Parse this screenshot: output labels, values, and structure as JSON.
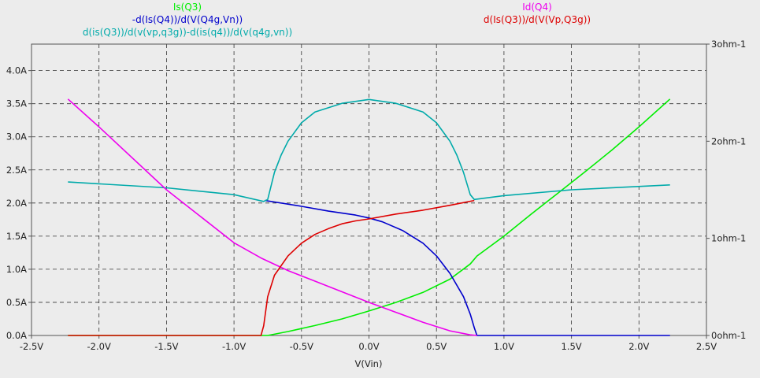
{
  "chart_data": {
    "type": "line",
    "title": "",
    "xlabel": "V(Vin)",
    "x_range": [
      -2.5,
      2.5
    ],
    "x_ticks": [
      -2.5,
      -2.0,
      -1.5,
      -1.0,
      -0.5,
      0.0,
      0.5,
      1.0,
      1.5,
      2.0,
      2.5
    ],
    "x_tick_labels": [
      "-2.5V",
      "-2.0V",
      "-1.5V",
      "-1.0V",
      "-0.5V",
      "0.0V",
      "0.5V",
      "1.0V",
      "1.5V",
      "2.0V",
      "2.5V"
    ],
    "y_left_range": [
      0,
      4.4
    ],
    "y_left_ticks": [
      0.0,
      0.5,
      1.0,
      1.5,
      2.0,
      2.5,
      3.0,
      3.5,
      4.0
    ],
    "y_left_tick_labels": [
      "0.0A",
      "0.5A",
      "1.0A",
      "1.5A",
      "2.0A",
      "2.5A",
      "3.0A",
      "3.5A",
      "4.0A"
    ],
    "y_right_range": [
      0,
      3
    ],
    "y_right_ticks": [
      0,
      1,
      2,
      3
    ],
    "y_right_tick_labels": [
      "0ohm-1",
      "1ohm-1",
      "2ohm-1",
      "3ohm-1"
    ],
    "grid": true,
    "series": [
      {
        "name": "Is(Q3)",
        "axis": "left",
        "color": "#00ee00",
        "x": [
          -2.23,
          -0.78,
          -0.75,
          -0.6,
          -0.4,
          -0.2,
          0.0,
          0.2,
          0.4,
          0.6,
          0.75,
          0.8,
          1.0,
          1.2,
          1.4,
          1.6,
          1.8,
          2.0,
          2.23
        ],
        "y": [
          0.0,
          0.0,
          0.0,
          0.06,
          0.15,
          0.25,
          0.37,
          0.5,
          0.65,
          0.85,
          1.08,
          1.2,
          1.5,
          1.83,
          2.15,
          2.47,
          2.8,
          3.15,
          3.57
        ]
      },
      {
        "name": "-d(Is(Q4))/d(V(Q4g,Vn))",
        "axis": "right",
        "color": "#0000cc",
        "x": [
          -0.77,
          -0.5,
          -0.3,
          -0.1,
          0.0,
          0.1,
          0.25,
          0.4,
          0.5,
          0.6,
          0.7,
          0.75,
          0.78,
          0.8,
          2.23
        ],
        "y": [
          1.39,
          1.33,
          1.28,
          1.24,
          1.21,
          1.17,
          1.08,
          0.95,
          0.82,
          0.64,
          0.4,
          0.22,
          0.08,
          0.0,
          0.0
        ]
      },
      {
        "name": "d(is(Q3))/d(v(vp,q3g))-d(is(q4))/d(v(q4g,vn))",
        "axis": "right",
        "color": "#00aaaa",
        "x": [
          -2.23,
          -1.5,
          -1.0,
          -0.78,
          -0.75,
          -0.7,
          -0.65,
          -0.6,
          -0.5,
          -0.4,
          -0.2,
          0.0,
          0.2,
          0.4,
          0.5,
          0.6,
          0.65,
          0.7,
          0.75,
          0.78,
          1.0,
          1.5,
          2.23
        ],
        "y": [
          1.58,
          1.52,
          1.45,
          1.38,
          1.4,
          1.68,
          1.86,
          2.0,
          2.19,
          2.3,
          2.39,
          2.43,
          2.39,
          2.3,
          2.19,
          2.0,
          1.86,
          1.68,
          1.45,
          1.4,
          1.44,
          1.5,
          1.55
        ]
      },
      {
        "name": "Id(Q4)",
        "axis": "left",
        "color": "#ee00ee",
        "x": [
          -2.23,
          -2.0,
          -1.5,
          -1.0,
          -0.8,
          -0.6,
          -0.4,
          -0.2,
          0.0,
          0.2,
          0.4,
          0.6,
          0.75,
          0.8
        ],
        "y": [
          3.57,
          3.15,
          2.2,
          1.4,
          1.17,
          0.98,
          0.82,
          0.66,
          0.5,
          0.35,
          0.2,
          0.07,
          0.01,
          0.0
        ]
      },
      {
        "name": "d(Is(Q3))/d(V(Vp,Q3g))",
        "axis": "right",
        "color": "#dd0000",
        "x": [
          -2.23,
          -0.8,
          -0.78,
          -0.75,
          -0.7,
          -0.6,
          -0.5,
          -0.4,
          -0.3,
          -0.2,
          -0.1,
          0.0,
          0.2,
          0.4,
          0.6,
          0.78
        ],
        "y": [
          0.0,
          0.0,
          0.1,
          0.4,
          0.62,
          0.82,
          0.95,
          1.04,
          1.1,
          1.15,
          1.18,
          1.2,
          1.25,
          1.29,
          1.34,
          1.39
        ]
      }
    ]
  },
  "legend": {
    "left_col": [
      {
        "label": "Is(Q3)",
        "color": "#00ee00"
      },
      {
        "label": "-d(Is(Q4))/d(V(Q4g,Vn))",
        "color": "#0000cc"
      },
      {
        "label": "d(is(Q3))/d(v(vp,q3g))-d(is(q4))/d(v(q4g,vn))",
        "color": "#00aaaa"
      }
    ],
    "right_col": [
      {
        "label": "Id(Q4)",
        "color": "#ee00ee"
      },
      {
        "label": "d(Is(Q3))/d(V(Vp,Q3g))",
        "color": "#dd0000"
      }
    ]
  }
}
